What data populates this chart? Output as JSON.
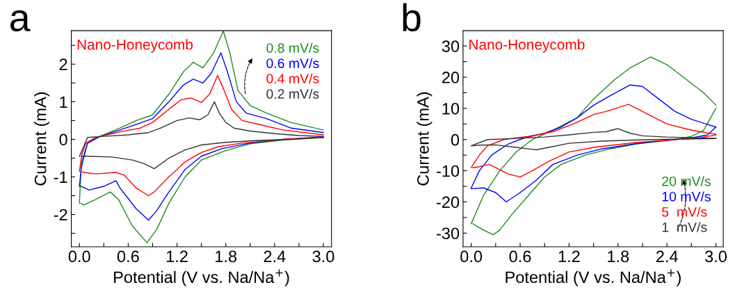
{
  "chart_data": [
    {
      "type": "line",
      "title": "a",
      "xlabel": "Potential (V vs. Na/Na$^{+}$)",
      "ylabel": "Current (mA)",
      "annotations": [
        "Nano-Honeycomb"
      ],
      "legend": "top right",
      "grid": false,
      "marker": "none",
      "line_style": "solid",
      "xlim": [
        -0.1,
        3.1
      ],
      "ylim": [
        -2.86,
        2.89
      ],
      "xticks": [
        {
          "value": 0,
          "label": "0.0"
        },
        {
          "value": 0.3,
          "label": null
        },
        0.6,
        {
          "value": 0.9,
          "label": null
        },
        1.2,
        {
          "value": 1.5,
          "label": null
        },
        1.8,
        {
          "value": 2.1,
          "label": null
        },
        2.4,
        {
          "value": 2.7,
          "label": null
        },
        {
          "value": 3,
          "label": "3.0"
        }
      ],
      "yticks": [
        {
          "value": -2.5,
          "label": null
        },
        -2,
        {
          "value": -1.5,
          "label": null
        },
        -1,
        {
          "value": -0.5,
          "label": null
        },
        0,
        {
          "value": 0.5,
          "label": null
        },
        1,
        {
          "value": 1.5,
          "label": null
        },
        2,
        {
          "value": 2.5,
          "label": null
        }
      ],
      "series": [
        {
          "name": "0.8 mV/s",
          "color": "#1a8c1a",
          "x": [
            0,
            0.02,
            0.1,
            0.25,
            0.5,
            0.7,
            0.9,
            1.1,
            1.28,
            1.4,
            1.52,
            1.65,
            1.77,
            1.85,
            1.95,
            2.1,
            2.3,
            2.6,
            3.0
          ],
          "values": [
            -1.7,
            -0.8,
            -0.1,
            0.08,
            0.3,
            0.5,
            0.65,
            1.2,
            1.8,
            2.05,
            1.9,
            2.3,
            2.88,
            2.3,
            1.3,
            0.9,
            0.7,
            0.45,
            0.25
          ]
        },
        {
          "color": "#1a8c1a",
          "x": [
            3.0,
            2.5,
            2.1,
            1.8,
            1.5,
            1.3,
            1.1,
            0.95,
            0.83,
            0.65,
            0.48,
            0.38,
            0.2,
            0.05,
            0.02
          ],
          "values": [
            0.05,
            -0.02,
            -0.12,
            -0.3,
            -0.55,
            -1.0,
            -1.7,
            -2.4,
            -2.75,
            -2.3,
            -1.6,
            -1.4,
            -1.6,
            -1.75,
            -1.7
          ]
        },
        {
          "name": "0.6 mV/s",
          "color": "#0000ff",
          "x": [
            0,
            0.03,
            0.1,
            0.25,
            0.5,
            0.7,
            0.9,
            1.1,
            1.28,
            1.4,
            1.52,
            1.62,
            1.74,
            1.82,
            1.93,
            2.05,
            2.3,
            2.6,
            3.0
          ],
          "values": [
            -1.25,
            -0.6,
            -0.1,
            0.07,
            0.25,
            0.4,
            0.55,
            1.0,
            1.45,
            1.6,
            1.5,
            1.75,
            2.3,
            1.8,
            1.0,
            0.7,
            0.55,
            0.3,
            0.18
          ]
        },
        {
          "color": "#0000ff",
          "x": [
            3.0,
            2.5,
            2.1,
            1.75,
            1.5,
            1.3,
            1.1,
            0.95,
            0.85,
            0.7,
            0.5,
            0.45,
            0.3,
            0.12,
            0.02
          ],
          "values": [
            0.07,
            0,
            -0.1,
            -0.25,
            -0.45,
            -0.8,
            -1.4,
            -1.9,
            -2.15,
            -1.85,
            -1.3,
            -1.1,
            -1.25,
            -1.35,
            -1.25
          ]
        },
        {
          "name": "0.4 mV/s",
          "color": "#ff0000",
          "x": [
            0,
            0.03,
            0.08,
            0.2,
            0.3,
            0.5,
            0.75,
            0.9,
            1.1,
            1.25,
            1.37,
            1.5,
            1.6,
            1.7,
            1.78,
            1.87,
            2.0,
            2.2,
            2.5,
            3.0
          ],
          "values": [
            -0.85,
            -0.4,
            -0.1,
            0.05,
            0.1,
            0.2,
            0.3,
            0.45,
            0.8,
            1.05,
            1.1,
            0.98,
            1.2,
            1.7,
            1.3,
            0.8,
            0.5,
            0.4,
            0.25,
            0.12
          ]
        },
        {
          "color": "#ff0000",
          "x": [
            3.0,
            2.5,
            2.0,
            1.7,
            1.5,
            1.3,
            1.1,
            0.92,
            0.85,
            0.7,
            0.55,
            0.45,
            0.2,
            0.05,
            0.02
          ],
          "values": [
            0.05,
            0,
            -0.1,
            -0.2,
            -0.35,
            -0.6,
            -1.0,
            -1.4,
            -1.5,
            -1.3,
            -0.95,
            -0.88,
            -0.92,
            -0.88,
            -0.85
          ]
        },
        {
          "name": "0.2 mV/s",
          "color": "#333333",
          "x": [
            0,
            0.1,
            0.3,
            0.6,
            0.85,
            1.0,
            1.2,
            1.35,
            1.48,
            1.58,
            1.66,
            1.72,
            1.8,
            1.9,
            2.1,
            2.4,
            2.7,
            3.0
          ],
          "values": [
            -0.45,
            0.05,
            0.08,
            0.12,
            0.18,
            0.3,
            0.5,
            0.57,
            0.52,
            0.65,
            1.0,
            0.7,
            0.45,
            0.3,
            0.22,
            0.15,
            0.1,
            0.08
          ]
        },
        {
          "color": "#333333",
          "x": [
            3.0,
            2.6,
            2.2,
            1.8,
            1.5,
            1.3,
            1.1,
            0.92,
            0.8,
            0.65,
            0.4,
            0.1,
            0.02
          ],
          "values": [
            0.05,
            0,
            -0.03,
            -0.08,
            -0.15,
            -0.28,
            -0.5,
            -0.78,
            -0.65,
            -0.55,
            -0.47,
            -0.45,
            -0.45
          ]
        }
      ]
    },
    {
      "type": "line",
      "title": "b",
      "xlabel": "Potential (V vs. Na/Na$^{+}$)",
      "ylabel": "Current (mA)",
      "annotations": [
        "Nano-Honeycomb"
      ],
      "legend": "bottom right",
      "grid": false,
      "marker": "none",
      "line_style": "solid",
      "xlim": [
        -0.1,
        3.09
      ],
      "ylim": [
        -34.4,
        34.9
      ],
      "xticks": [
        {
          "value": 0,
          "label": "0.0"
        },
        {
          "value": 0.3,
          "label": null
        },
        0.6,
        {
          "value": 0.9,
          "label": null
        },
        1.2,
        {
          "value": 1.5,
          "label": null
        },
        1.8,
        {
          "value": 2.1,
          "label": null
        },
        2.4,
        {
          "value": 2.7,
          "label": null
        },
        {
          "value": 3,
          "label": "3.0"
        }
      ],
      "yticks": [
        -30,
        {
          "value": -25,
          "label": null
        },
        -20,
        {
          "value": -15,
          "label": null
        },
        -10,
        {
          "value": -5,
          "label": null
        },
        0,
        {
          "value": 5,
          "label": null
        },
        10,
        {
          "value": 15,
          "label": null
        },
        20,
        {
          "value": 25,
          "label": null
        },
        30
      ],
      "series": [
        {
          "name": "20 mV/s",
          "color": "#1a8c1a",
          "x": [
            0,
            0.15,
            0.35,
            0.55,
            0.75,
            1.0,
            1.3,
            1.5,
            1.75,
            1.95,
            2.2,
            2.4,
            2.6,
            2.85,
            3.0
          ],
          "values": [
            -27,
            -18,
            -10,
            -4,
            0,
            3,
            7,
            13,
            19,
            23,
            26.5,
            24,
            20,
            15,
            11
          ]
        },
        {
          "color": "#1a8c1a",
          "x": [
            3.0,
            2.85,
            2.7,
            2.5,
            2.0,
            1.7,
            1.4,
            1.1,
            0.9,
            0.7,
            0.5,
            0.35,
            0.27,
            0.15,
            0.05,
            0.02
          ],
          "values": [
            10,
            3,
            1,
            0,
            -1.5,
            -3,
            -5,
            -8,
            -12,
            -18,
            -24,
            -29,
            -30.5,
            -29,
            -27.5,
            -27
          ]
        },
        {
          "name": "10 mV/s",
          "color": "#0000ff",
          "x": [
            0,
            0.1,
            0.25,
            0.45,
            0.65,
            0.9,
            1.1,
            1.3,
            1.5,
            1.7,
            1.95,
            2.1,
            2.3,
            2.5,
            2.7,
            3.0
          ],
          "values": [
            -15.5,
            -10,
            -5,
            -1.5,
            0.5,
            2,
            4,
            7,
            11,
            14,
            17.5,
            17,
            13,
            9,
            6.5,
            4
          ]
        },
        {
          "color": "#0000ff",
          "x": [
            3.0,
            2.9,
            2.7,
            2.1,
            1.6,
            1.3,
            1.0,
            0.8,
            0.6,
            0.43,
            0.3,
            0.15,
            0
          ],
          "values": [
            4,
            1.5,
            0.5,
            -1,
            -3,
            -5,
            -8,
            -13,
            -17,
            -20,
            -17,
            -15.5,
            -15.8
          ]
        },
        {
          "name": "5  mV/s",
          "color": "#ff0000",
          "x": [
            0,
            0.1,
            0.2,
            0.4,
            0.7,
            1.0,
            1.25,
            1.5,
            1.65,
            1.93,
            2.1,
            2.4,
            2.7,
            3.0
          ],
          "values": [
            -9,
            -5,
            -2,
            0,
            1,
            2.5,
            5,
            8,
            9,
            11.3,
            9,
            5,
            3,
            1.7
          ]
        },
        {
          "color": "#ff0000",
          "x": [
            3.0,
            2.8,
            2.5,
            2.0,
            1.5,
            1.2,
            0.95,
            0.75,
            0.6,
            0.45,
            0.3,
            0.22,
            0.08,
            0.02
          ],
          "values": [
            1.5,
            0.5,
            0,
            -1,
            -2.5,
            -4,
            -7,
            -10,
            -12,
            -11,
            -9,
            -8,
            -8.8,
            -9
          ]
        },
        {
          "name": "1  mV/s",
          "color": "#333333",
          "x": [
            0,
            0.2,
            0.5,
            0.9,
            1.2,
            1.5,
            1.65,
            1.8,
            1.95,
            2.1,
            2.4,
            3.0
          ],
          "values": [
            -2,
            0,
            0.3,
            0.8,
            1.5,
            2.3,
            2.5,
            3.5,
            2.0,
            1.2,
            0.8,
            0.4
          ]
        },
        {
          "color": "#333333",
          "x": [
            3.0,
            2.2,
            1.6,
            1.2,
            0.95,
            0.8,
            0.55,
            0.3,
            0.1,
            0.02
          ],
          "values": [
            0.3,
            0,
            -0.5,
            -1.2,
            -2.5,
            -3.3,
            -2.5,
            -1.7,
            -1.8,
            -2
          ]
        }
      ]
    }
  ]
}
